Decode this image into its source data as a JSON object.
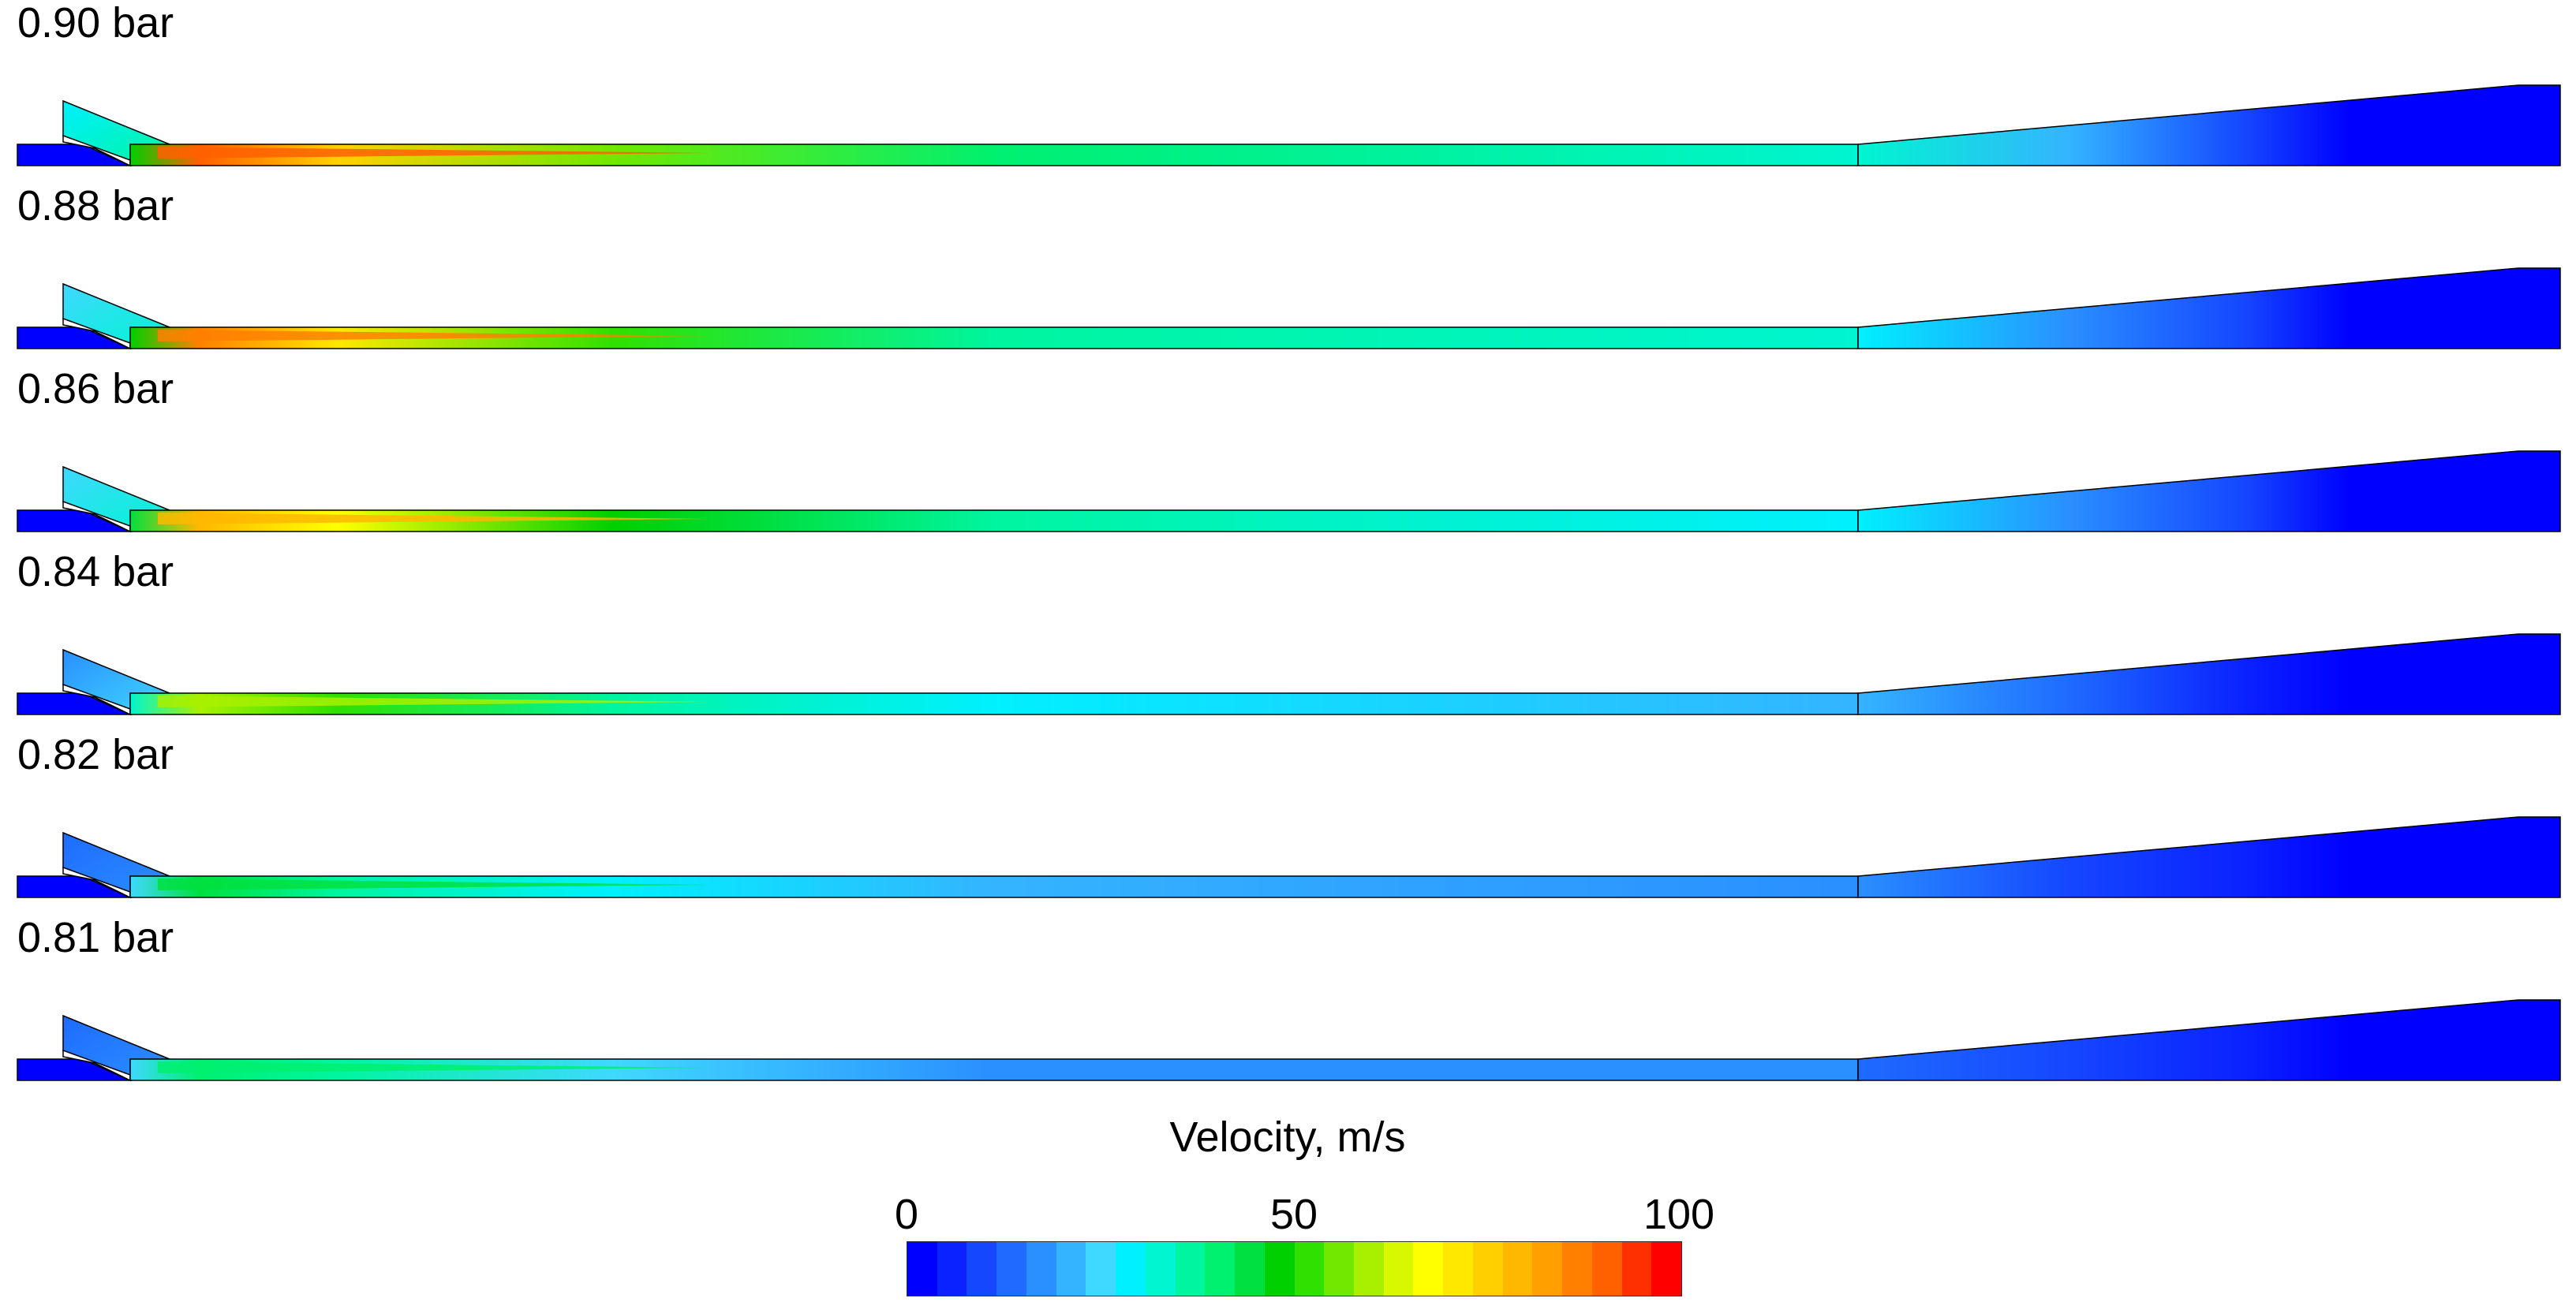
{
  "panels": [
    {
      "label": "0.90 bar",
      "peak_velocity_ms": 90
    },
    {
      "label": "0.88 bar",
      "peak_velocity_ms": 85
    },
    {
      "label": "0.86 bar",
      "peak_velocity_ms": 78
    },
    {
      "label": "0.84 bar",
      "peak_velocity_ms": 60
    },
    {
      "label": "0.82 bar",
      "peak_velocity_ms": 45
    },
    {
      "label": "0.81 bar",
      "peak_velocity_ms": 42
    }
  ],
  "legend": {
    "title": "Velocity, m/s",
    "min_label": "0",
    "mid_label": "50",
    "max_label": "100",
    "range": [
      0,
      100
    ],
    "bins": 26,
    "colors": [
      "#0000ff",
      "#0a22ff",
      "#1547ff",
      "#1f6bff",
      "#2a8fff",
      "#34b4ff",
      "#3fd8ff",
      "#00f0ff",
      "#00f5d0",
      "#00f5a0",
      "#00f070",
      "#00e040",
      "#00d000",
      "#30e000",
      "#70e800",
      "#a8f000",
      "#d8f800",
      "#ffff00",
      "#ffe800",
      "#ffd000",
      "#ffb800",
      "#ffa000",
      "#ff8000",
      "#ff6000",
      "#ff3000",
      "#ff0000"
    ]
  },
  "colors": {
    "background": "#ffffff",
    "text": "#000000",
    "outline": "#000000"
  }
}
